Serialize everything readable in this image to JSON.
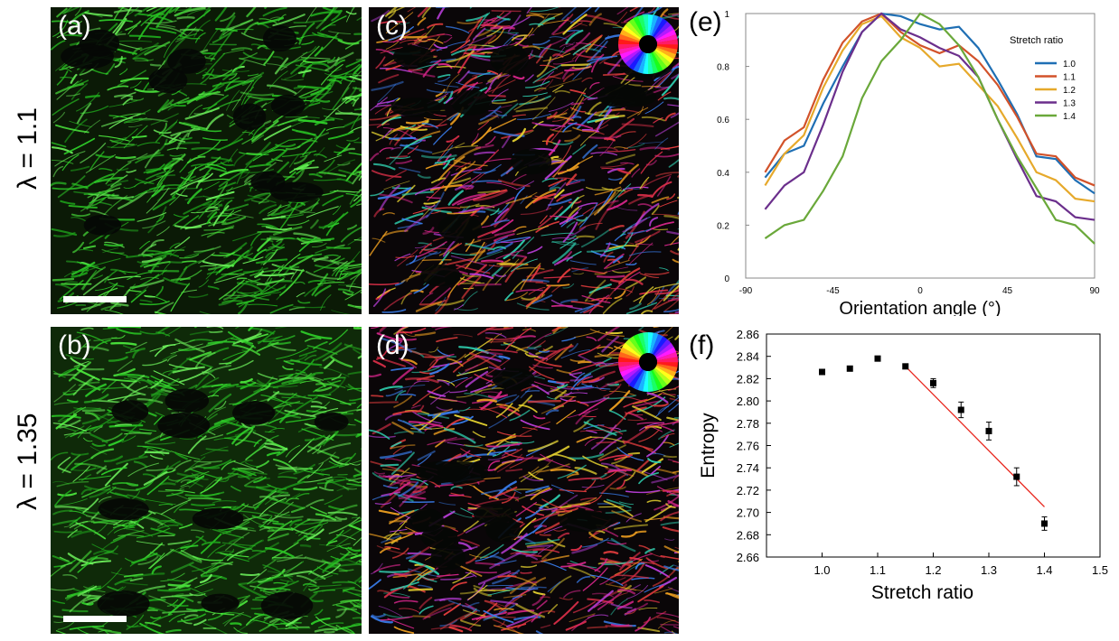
{
  "row_labels": {
    "top": "λ = 1.1",
    "bottom": "λ = 1.35"
  },
  "panels": {
    "a": "(a)",
    "b": "(b)",
    "c": "(c)",
    "d": "(d)",
    "e": "(e)",
    "f": "(f)"
  },
  "colors": {
    "fiber_green": "#2fd12a",
    "micro_bg": "#0b1a06",
    "orientation_bg": "#0a0608",
    "series": [
      "#1f6fb4",
      "#d2522a",
      "#e6a92b",
      "#6b2f8c",
      "#6aa83a"
    ],
    "fit_line": "#e8251c"
  },
  "chart_data": [
    {
      "panel": "e",
      "type": "line",
      "x": [
        -80,
        -70,
        -60,
        -50,
        -40,
        -30,
        -20,
        -10,
        0,
        10,
        20,
        30,
        40,
        50,
        60,
        70,
        80,
        90
      ],
      "series": [
        {
          "name": "1.0",
          "values": [
            0.38,
            0.47,
            0.5,
            0.66,
            0.8,
            0.93,
            1.0,
            0.99,
            0.96,
            0.94,
            0.95,
            0.87,
            0.75,
            0.62,
            0.46,
            0.45,
            0.37,
            0.32
          ]
        },
        {
          "name": "1.1",
          "values": [
            0.4,
            0.52,
            0.57,
            0.75,
            0.89,
            0.97,
            1.0,
            0.93,
            0.88,
            0.85,
            0.88,
            0.82,
            0.73,
            0.61,
            0.47,
            0.46,
            0.38,
            0.35
          ]
        },
        {
          "name": "1.2",
          "values": [
            0.35,
            0.47,
            0.54,
            0.72,
            0.86,
            0.96,
            0.99,
            0.91,
            0.87,
            0.8,
            0.81,
            0.73,
            0.65,
            0.53,
            0.4,
            0.37,
            0.3,
            0.29
          ]
        },
        {
          "name": "1.3",
          "values": [
            0.26,
            0.35,
            0.4,
            0.58,
            0.78,
            0.93,
            1.0,
            0.94,
            0.91,
            0.87,
            0.84,
            0.76,
            0.6,
            0.45,
            0.31,
            0.29,
            0.23,
            0.22
          ]
        },
        {
          "name": "1.4",
          "values": [
            0.15,
            0.2,
            0.22,
            0.33,
            0.46,
            0.68,
            0.82,
            0.9,
            1.0,
            0.96,
            0.88,
            0.76,
            0.6,
            0.46,
            0.34,
            0.22,
            0.2,
            0.13
          ]
        }
      ],
      "xlabel": "Orientation angle (°)",
      "ylabel": "",
      "xlim": [
        -90,
        90
      ],
      "ylim": [
        0,
        1
      ],
      "xticks": [
        -90,
        -45,
        0,
        45,
        90
      ],
      "yticks": [
        0,
        0.2,
        0.4,
        0.6,
        0.8,
        1
      ],
      "ytick_labels": [
        "0",
        "0.2",
        "0.4",
        "0.6",
        "0.8",
        "1"
      ],
      "legend_title": "Stretch ratio",
      "legend_position": "top-right"
    },
    {
      "panel": "f",
      "type": "scatter",
      "x": [
        1.0,
        1.05,
        1.1,
        1.15,
        1.2,
        1.25,
        1.3,
        1.35,
        1.4
      ],
      "values": [
        2.826,
        2.829,
        2.838,
        2.831,
        2.816,
        2.792,
        2.773,
        2.732,
        2.69
      ],
      "errors": [
        0.0,
        0.0,
        0.0,
        0.0,
        0.004,
        0.007,
        0.008,
        0.008,
        0.006
      ],
      "fit_line": {
        "x": [
          1.15,
          1.4
        ],
        "y": [
          2.831,
          2.705
        ]
      },
      "xlabel": "Stretch ratio",
      "ylabel": "Entropy",
      "xlim": [
        0.9,
        1.5
      ],
      "ylim": [
        2.66,
        2.86
      ],
      "xticks": [
        1.0,
        1.1,
        1.2,
        1.3,
        1.4,
        1.5
      ],
      "xtick_labels": [
        "1.0",
        "1.1",
        "1.2",
        "1.3",
        "1.4",
        "1.5"
      ],
      "yticks": [
        2.66,
        2.68,
        2.7,
        2.72,
        2.74,
        2.76,
        2.78,
        2.8,
        2.82,
        2.84,
        2.86
      ],
      "ytick_labels": [
        "2.66",
        "2.68",
        "2.70",
        "2.72",
        "2.74",
        "2.76",
        "2.78",
        "2.80",
        "2.82",
        "2.84",
        "2.86"
      ],
      "grid": false
    }
  ]
}
